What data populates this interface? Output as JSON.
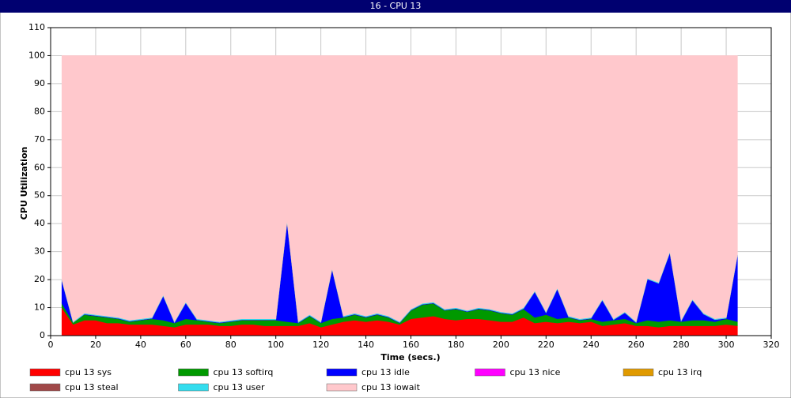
{
  "chart_data": {
    "type": "stacked-area",
    "title": "16 - CPU 13",
    "xlabel": "Time (secs.)",
    "ylabel": "CPU Utilization",
    "xlim": [
      0,
      320
    ],
    "xticks": [
      0,
      20,
      40,
      60,
      80,
      100,
      120,
      140,
      160,
      180,
      200,
      220,
      240,
      260,
      280,
      300,
      320
    ],
    "ylim": [
      0,
      110
    ],
    "yticks": [
      0,
      10,
      20,
      30,
      40,
      50,
      60,
      70,
      80,
      90,
      100,
      110
    ],
    "grid": true,
    "x": [
      5,
      10,
      15,
      20,
      25,
      30,
      35,
      40,
      45,
      50,
      55,
      60,
      65,
      70,
      75,
      80,
      85,
      90,
      95,
      100,
      105,
      110,
      115,
      120,
      125,
      130,
      135,
      140,
      145,
      150,
      155,
      160,
      165,
      170,
      175,
      180,
      185,
      190,
      195,
      200,
      205,
      210,
      215,
      220,
      225,
      230,
      235,
      240,
      245,
      250,
      255,
      260,
      265,
      270,
      275,
      280,
      285,
      290,
      295,
      300,
      305
    ],
    "series": [
      {
        "name": "cpu 13 sys",
        "color": "#ff0000",
        "values": [
          10,
          4,
          5.5,
          5.5,
          4.5,
          4.5,
          4,
          4,
          4,
          3.5,
          3,
          4,
          4,
          4,
          3.5,
          3.5,
          4,
          4,
          3.5,
          3.5,
          3.5,
          3.5,
          4.5,
          3,
          4,
          5,
          5.5,
          5,
          5.5,
          5,
          4,
          6,
          6.5,
          7,
          6,
          5.5,
          6,
          6,
          5.5,
          5,
          5,
          6.5,
          4.5,
          5,
          4.5,
          5,
          4.5,
          5,
          3.5,
          4,
          4.5,
          3.5,
          3.5,
          3,
          3.5,
          3.5,
          3.5,
          3.5,
          3.5,
          4,
          3.5
        ]
      },
      {
        "name": "cpu 13 softirq",
        "color": "#009900",
        "values": [
          1.5,
          0.7,
          2,
          1.5,
          2,
          1.5,
          1,
          1.5,
          2,
          2,
          1.5,
          2,
          1.5,
          1,
          1,
          1.5,
          1.5,
          1.5,
          2,
          2,
          1.5,
          1,
          2.5,
          1.5,
          2,
          1.5,
          2,
          1.5,
          2,
          1.5,
          0.5,
          3,
          4.5,
          4.5,
          3,
          4,
          2.5,
          3.5,
          3.5,
          3,
          2.5,
          3,
          2,
          2.5,
          1.5,
          1.5,
          1,
          1,
          1.5,
          1.5,
          1.5,
          1,
          2,
          2,
          2,
          1.5,
          2,
          2,
          1.5,
          2,
          1.5
        ]
      },
      {
        "name": "cpu 13 idle",
        "color": "#0000ff",
        "values": [
          8.2,
          0,
          0.2,
          0.2,
          0.2,
          0.2,
          0.2,
          0.2,
          0.2,
          8.7,
          0.2,
          5.7,
          0.2,
          0.2,
          0.2,
          0.2,
          0.2,
          0.2,
          0.2,
          0.2,
          35.7,
          0.2,
          0.2,
          0.2,
          17.7,
          0.2,
          0.2,
          0.2,
          0.2,
          0.2,
          0.2,
          0.2,
          0.2,
          0.2,
          0.2,
          0.2,
          0.2,
          0.2,
          0.2,
          0.2,
          0.2,
          0.2,
          9.2,
          0.7,
          10.7,
          0.2,
          0.2,
          0.2,
          7.7,
          0.2,
          2.2,
          0.2,
          14.7,
          13.7,
          24.2,
          0.2,
          7.2,
          2.2,
          0.7,
          0.2,
          23.7
        ]
      },
      {
        "name": "cpu 13 nice",
        "color": "#ff00ff",
        "values": [
          0,
          0,
          0,
          0,
          0,
          0,
          0,
          0,
          0,
          0,
          0,
          0,
          0,
          0,
          0,
          0,
          0,
          0,
          0,
          0,
          0,
          0,
          0,
          0,
          0,
          0,
          0,
          0,
          0,
          0,
          0,
          0,
          0,
          0,
          0,
          0,
          0,
          0,
          0,
          0,
          0,
          0,
          0,
          0,
          0,
          0,
          0,
          0,
          0,
          0,
          0,
          0,
          0,
          0,
          0,
          0,
          0,
          0,
          0,
          0,
          0
        ]
      },
      {
        "name": "cpu 13 irq",
        "color": "#e09a00",
        "values": [
          0,
          0,
          0,
          0,
          0,
          0,
          0,
          0,
          0,
          0,
          0,
          0,
          0,
          0,
          0,
          0,
          0,
          0,
          0,
          0,
          0,
          0,
          0,
          0,
          0,
          0,
          0,
          0,
          0,
          0,
          0,
          0,
          0,
          0,
          0,
          0,
          0,
          0,
          0,
          0,
          0,
          0,
          0,
          0,
          0,
          0,
          0,
          0,
          0,
          0,
          0,
          0,
          0,
          0,
          0,
          0,
          0,
          0,
          0,
          0,
          0
        ]
      },
      {
        "name": "cpu 13 steal",
        "color": "#a04848",
        "values": [
          0,
          0,
          0,
          0,
          0,
          0,
          0,
          0,
          0,
          0,
          0,
          0,
          0,
          0,
          0,
          0,
          0,
          0,
          0,
          0,
          0,
          0,
          0,
          0,
          0,
          0,
          0,
          0,
          0,
          0,
          0,
          0,
          0,
          0,
          0,
          0,
          0,
          0,
          0,
          0,
          0,
          0,
          0,
          0,
          0,
          0,
          0,
          0,
          0,
          0,
          0,
          0,
          0,
          0,
          0,
          0,
          0,
          0,
          0,
          0,
          0
        ]
      },
      {
        "name": "cpu 13 user",
        "color": "#33ddee",
        "values": [
          0.3,
          0.3,
          0.3,
          0.3,
          0.3,
          0.3,
          0.3,
          0.3,
          0.3,
          0.3,
          0.3,
          0.3,
          0.3,
          0.3,
          0.3,
          0.3,
          0.3,
          0.3,
          0.3,
          0.3,
          0.3,
          0.3,
          0.3,
          0.3,
          0.3,
          0.3,
          0.3,
          0.3,
          0.3,
          0.3,
          0.3,
          0.3,
          0.3,
          0.3,
          0.3,
          0.3,
          0.3,
          0.3,
          0.3,
          0.3,
          0.3,
          0.3,
          0.3,
          0.3,
          0.3,
          0.3,
          0.3,
          0.3,
          0.3,
          0.3,
          0.3,
          0.3,
          0.3,
          0.3,
          0.3,
          0.3,
          0.3,
          0.3,
          0.3,
          0.3,
          0.3
        ]
      },
      {
        "name": "cpu 13 iowait",
        "color": "#ffc8cc",
        "values": [
          80,
          95,
          92,
          92.5,
          93,
          93.5,
          94.5,
          94,
          93.5,
          85.5,
          95,
          88,
          94,
          94.5,
          95,
          94.5,
          94,
          94,
          94,
          94,
          59,
          95,
          92.5,
          95,
          76,
          93,
          92,
          93,
          92,
          93,
          95,
          90.5,
          88.5,
          88,
          90.5,
          90,
          91,
          90,
          90.5,
          91.5,
          92,
          90,
          84,
          91.5,
          83,
          93,
          94,
          93.5,
          87,
          94,
          91.5,
          95,
          79.5,
          81,
          70,
          94.5,
          87,
          92,
          94,
          93.5,
          71
        ]
      }
    ]
  }
}
